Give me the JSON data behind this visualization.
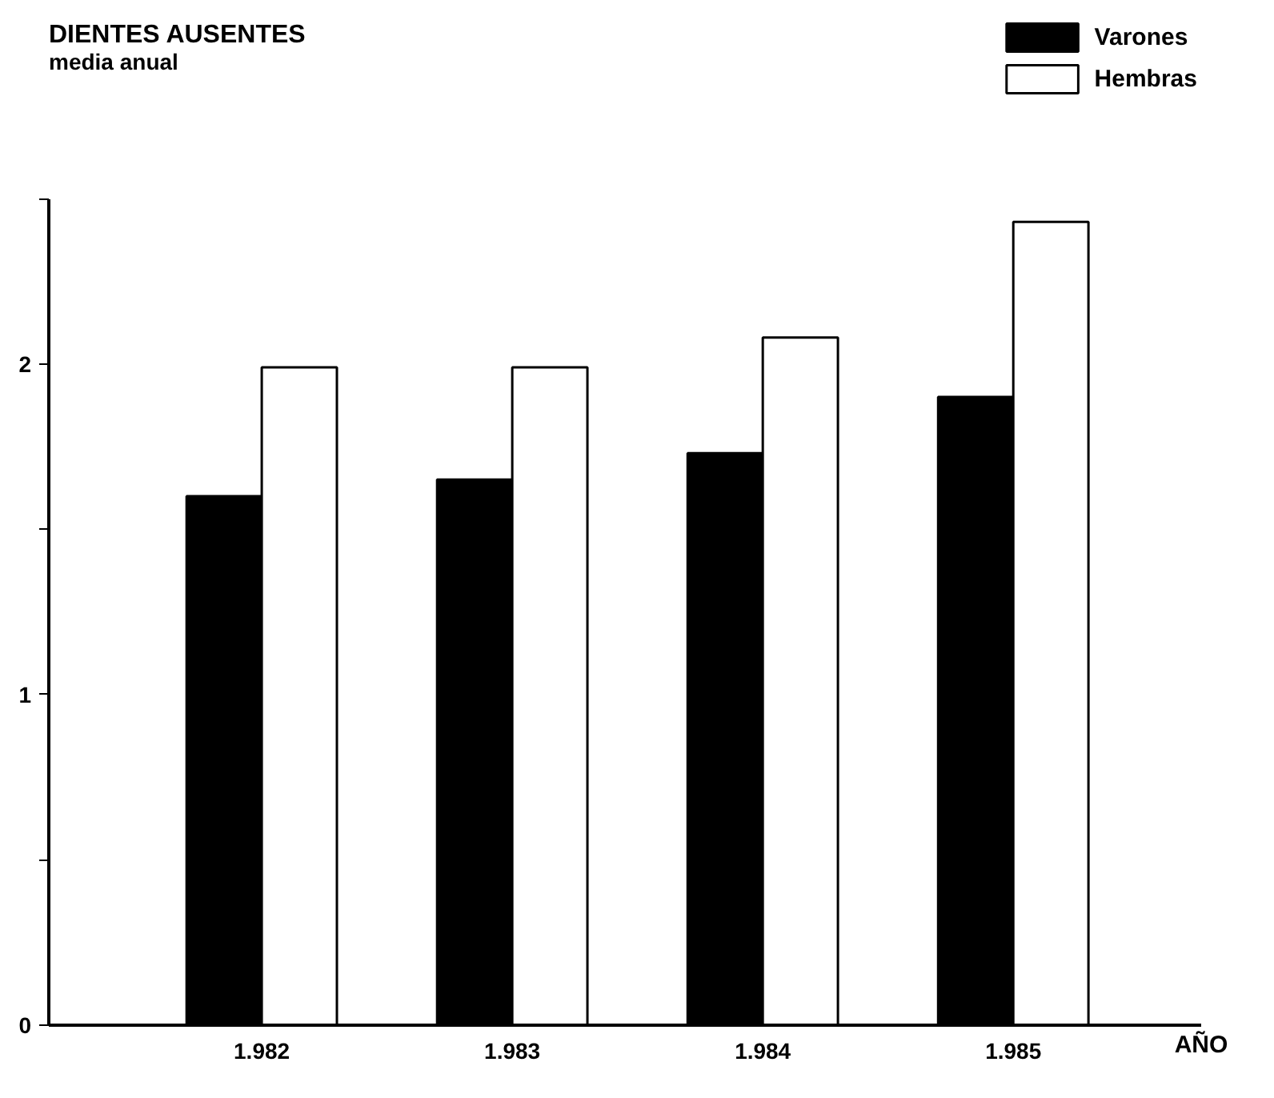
{
  "chart_data": {
    "type": "bar",
    "title": "DIENTES AUSENTES",
    "subtitle": "media anual",
    "xlabel": "AÑO",
    "categories": [
      "1.982",
      "1.983",
      "1.984",
      "1.985"
    ],
    "series": [
      {
        "name": "Varones",
        "color": "#000000",
        "values": [
          1.6,
          1.65,
          1.73,
          1.9
        ]
      },
      {
        "name": "Hembras",
        "color": "#ffffff",
        "values": [
          1.99,
          1.99,
          2.08,
          2.43
        ]
      }
    ],
    "ylim": [
      0,
      2.5
    ],
    "yticks": [
      0,
      {
        "value": 0.5,
        "label": null
      },
      1,
      {
        "value": 1.5,
        "label": null
      },
      2,
      {
        "value": 2.5,
        "label": null
      }
    ],
    "grid": false,
    "legend": "top right"
  }
}
